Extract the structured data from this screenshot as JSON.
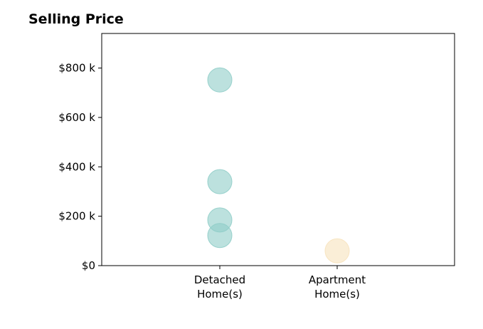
{
  "chart_data": {
    "type": "scatter",
    "title": "Selling Price",
    "xlabel": "",
    "ylabel": "",
    "categories": [
      [
        "Detached",
        "Home(s)"
      ],
      [
        "Apartment",
        "Home(s)"
      ]
    ],
    "ylim": [
      0,
      940000
    ],
    "yticks": [
      0,
      200000,
      400000,
      600000,
      800000
    ],
    "ytick_labels": [
      "$0",
      "$200 k",
      "$400 k",
      "$600 k",
      "$800 k"
    ],
    "grid": false,
    "legend": "none",
    "series": [
      {
        "category": "Detached Home(s)",
        "color": "#8fcdc8",
        "values": [
          752000,
          340000,
          185000,
          122000
        ]
      },
      {
        "category": "Apartment Home(s)",
        "color": "#f7e2bc",
        "values": [
          60000
        ]
      }
    ]
  }
}
